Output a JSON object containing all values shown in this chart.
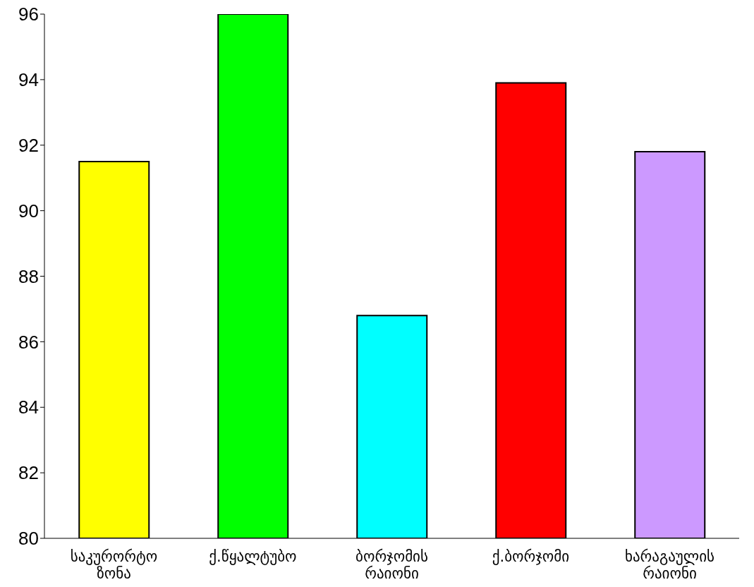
{
  "chart_data": {
    "type": "bar",
    "categories": [
      "საკურორტო ზონა",
      "ქ.წყალტუბო",
      "ბორჯომის რაიონი",
      "ქ.ბორჯომი",
      "ხარაგაულის რაიონი"
    ],
    "values": [
      91.5,
      96.0,
      86.8,
      93.9,
      91.8
    ],
    "colors": [
      "#ffff00",
      "#00ff00",
      "#00ffff",
      "#ff0000",
      "#cc99ff"
    ],
    "ylim": [
      80,
      96
    ],
    "yticks": [
      80,
      82,
      84,
      86,
      88,
      90,
      92,
      94,
      96
    ],
    "grid": false,
    "legend": false
  }
}
